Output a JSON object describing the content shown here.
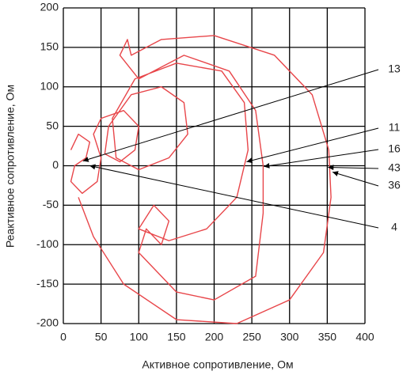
{
  "chart_data": {
    "type": "line",
    "x_label": "Активное сопротивление, Ом",
    "y_label": "Реактивное сопротивление, Ом",
    "xlim": [
      0,
      400
    ],
    "ylim": [
      -200,
      200
    ],
    "xticks": [
      0,
      50,
      100,
      150,
      200,
      250,
      300,
      350,
      400
    ],
    "yticks": [
      -200,
      -150,
      -100,
      -50,
      0,
      50,
      100,
      150,
      200
    ],
    "grid": true,
    "series": [
      {
        "color": "#e8464a",
        "x": [
          10,
          20,
          35,
          30,
          15,
          10,
          25,
          45,
          50,
          40,
          50,
          80,
          100,
          95,
          75,
          55,
          60,
          90,
          130,
          160,
          165,
          140,
          100,
          70,
          65,
          95,
          150,
          210,
          240,
          245,
          230,
          190,
          140,
          100,
          120,
          140,
          130,
          110,
          100,
          150,
          200,
          255,
          265,
          265,
          255,
          220,
          160,
          100,
          75,
          85,
          90,
          130,
          200,
          280,
          330,
          352,
          355,
          345,
          300,
          230,
          150,
          80,
          40,
          20
        ],
        "values": [
          20,
          40,
          30,
          10,
          0,
          -20,
          -35,
          -20,
          10,
          40,
          60,
          70,
          50,
          20,
          5,
          15,
          50,
          90,
          100,
          80,
          40,
          10,
          -5,
          10,
          60,
          110,
          130,
          120,
          80,
          20,
          -40,
          -80,
          -95,
          -80,
          -50,
          -70,
          -100,
          -80,
          -110,
          -160,
          -170,
          -140,
          -60,
          0,
          70,
          120,
          140,
          110,
          140,
          160,
          140,
          160,
          165,
          140,
          90,
          20,
          -40,
          -110,
          -170,
          -200,
          -195,
          -150,
          -90,
          -40
        ]
      }
    ],
    "annotations": [
      {
        "text": "13",
        "x": 26,
        "y": 6
      },
      {
        "text": "11",
        "x": 243,
        "y": 5
      },
      {
        "text": "16",
        "x": 266,
        "y": -1
      },
      {
        "text": "43",
        "x": 351,
        "y": -2
      },
      {
        "text": "36",
        "x": 357,
        "y": -8
      },
      {
        "text": "4",
        "x": 35,
        "y": 0
      }
    ]
  }
}
